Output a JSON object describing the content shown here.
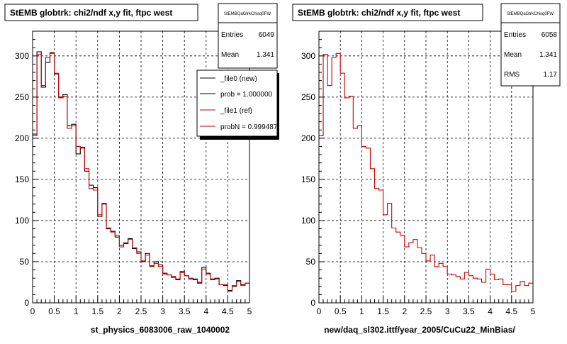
{
  "panels": [
    {
      "title": "StEMB globtrk: chi2/ndf x,y fit, ftpc west",
      "stats": {
        "name": "StEMBQaGtrkChisq0FW",
        "rows": [
          {
            "label": "Entries",
            "value": "6049"
          },
          {
            "label": "Mean",
            "value": "1.341"
          }
        ]
      },
      "legend": [
        {
          "label": "_file0 (new)",
          "color": "#000000"
        },
        {
          "label": "prob = 1.000000",
          "color": "#000000"
        },
        {
          "label": "_file1 (ref)",
          "color": "#cc0000"
        },
        {
          "label": "probN = 0.999487",
          "color": "#cc0000"
        }
      ],
      "footer": "st_physics_6083006_raw_1040002"
    },
    {
      "title": "StEMB globtrk: chi2/ndf x,y fit, ftpc west",
      "stats": {
        "name": "StEMBQaGtrkChisq0FW",
        "rows": [
          {
            "label": "Entries",
            "value": "6058"
          },
          {
            "label": "Mean",
            "value": "1.341"
          },
          {
            "label": "RMS",
            "value": "1.17"
          }
        ]
      },
      "legend": [],
      "footer": "new/daq_sl302.ittf/year_2005/CuCu22_MinBias/"
    }
  ],
  "chart_data": [
    {
      "type": "line",
      "style": "step-histogram",
      "title": "StEMB globtrk: chi2/ndf x,y fit, ftpc west",
      "xlabel": "",
      "ylabel": "",
      "xlim": [
        0,
        5
      ],
      "ylim": [
        0,
        330
      ],
      "xticks": [
        0,
        0.5,
        1,
        1.5,
        2,
        2.5,
        3,
        3.5,
        4,
        4.5,
        5
      ],
      "yticks": [
        0,
        50,
        100,
        150,
        200,
        250,
        300
      ],
      "grid": true,
      "bin_width": 0.1,
      "x": [
        0.05,
        0.15,
        0.25,
        0.35,
        0.45,
        0.55,
        0.65,
        0.75,
        0.85,
        0.95,
        1.05,
        1.15,
        1.25,
        1.35,
        1.45,
        1.55,
        1.65,
        1.75,
        1.85,
        1.95,
        2.05,
        2.15,
        2.25,
        2.35,
        2.45,
        2.55,
        2.65,
        2.75,
        2.85,
        2.95,
        3.05,
        3.15,
        3.25,
        3.35,
        3.45,
        3.55,
        3.65,
        3.75,
        3.85,
        3.95,
        4.05,
        4.15,
        4.25,
        4.35,
        4.45,
        4.55,
        4.65,
        4.75,
        4.85,
        4.95
      ],
      "series": [
        {
          "name": "_file0 (new)",
          "color": "#000000",
          "values": [
            205,
            305,
            262,
            292,
            304,
            278,
            250,
            253,
            215,
            217,
            181,
            189,
            160,
            143,
            140,
            105,
            120,
            90,
            87,
            80,
            70,
            72,
            78,
            66,
            62,
            50,
            60,
            45,
            50,
            46,
            36,
            34,
            31,
            28,
            38,
            33,
            29,
            28,
            24,
            43,
            36,
            29,
            30,
            22,
            21,
            15,
            20,
            27,
            22,
            24
          ]
        },
        {
          "name": "_file1 (ref)",
          "color": "#cc0000",
          "values": [
            203,
            302,
            264,
            298,
            303,
            279,
            249,
            251,
            212,
            215,
            190,
            188,
            163,
            139,
            137,
            107,
            121,
            91,
            86,
            82,
            68,
            73,
            77,
            67,
            60,
            51,
            58,
            44,
            48,
            44,
            35,
            34,
            32,
            29,
            37,
            33,
            30,
            29,
            25,
            41,
            35,
            28,
            29,
            22,
            22,
            14,
            21,
            26,
            21,
            24
          ]
        }
      ]
    },
    {
      "type": "line",
      "style": "step-histogram",
      "title": "StEMB globtrk: chi2/ndf x,y fit, ftpc west",
      "xlabel": "",
      "ylabel": "",
      "xlim": [
        0,
        5
      ],
      "ylim": [
        0,
        330
      ],
      "xticks": [
        0,
        0.5,
        1,
        1.5,
        2,
        2.5,
        3,
        3.5,
        4,
        4.5,
        5
      ],
      "yticks": [
        0,
        50,
        100,
        150,
        200,
        250,
        300
      ],
      "grid": true,
      "bin_width": 0.1,
      "x": [
        0.05,
        0.15,
        0.25,
        0.35,
        0.45,
        0.55,
        0.65,
        0.75,
        0.85,
        0.95,
        1.05,
        1.15,
        1.25,
        1.35,
        1.45,
        1.55,
        1.65,
        1.75,
        1.85,
        1.95,
        2.05,
        2.15,
        2.25,
        2.35,
        2.45,
        2.55,
        2.65,
        2.75,
        2.85,
        2.95,
        3.05,
        3.15,
        3.25,
        3.35,
        3.45,
        3.55,
        3.65,
        3.75,
        3.85,
        3.95,
        4.05,
        4.15,
        4.25,
        4.35,
        4.45,
        4.55,
        4.65,
        4.75,
        4.85,
        4.95
      ],
      "series": [
        {
          "name": "",
          "color": "#cc0000",
          "values": [
            203,
            302,
            264,
            298,
            303,
            279,
            249,
            251,
            212,
            215,
            190,
            188,
            163,
            139,
            137,
            107,
            121,
            91,
            86,
            82,
            68,
            73,
            77,
            67,
            60,
            51,
            58,
            44,
            48,
            44,
            35,
            34,
            32,
            29,
            37,
            33,
            30,
            29,
            25,
            41,
            35,
            28,
            29,
            22,
            22,
            14,
            21,
            26,
            21,
            24
          ]
        }
      ]
    }
  ]
}
